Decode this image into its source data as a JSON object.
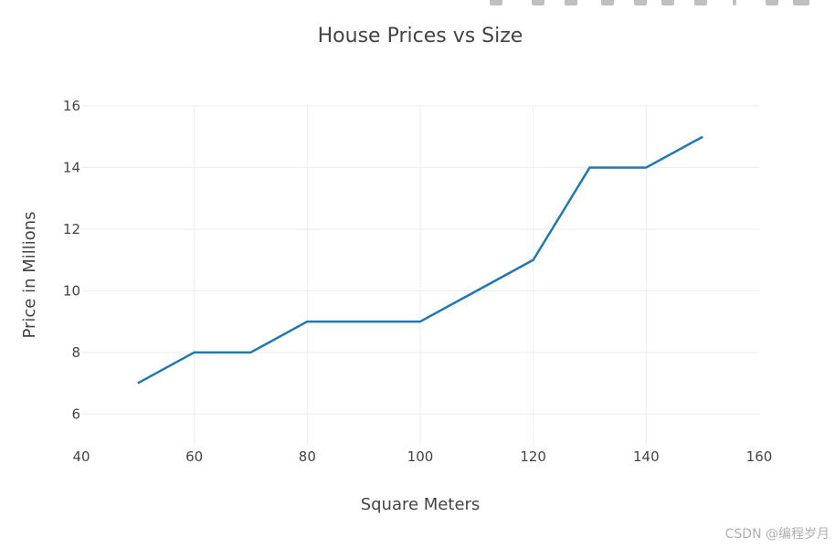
{
  "chart_data": {
    "type": "line",
    "title": "House Prices vs Size",
    "xlabel": "Square Meters",
    "ylabel": "Price in Millions",
    "xlim": [
      40,
      160
    ],
    "ylim": [
      5,
      16
    ],
    "x_ticks": [
      40,
      60,
      80,
      100,
      120,
      140,
      160
    ],
    "y_ticks": [
      6,
      8,
      10,
      12,
      14,
      16
    ],
    "grid": true,
    "legend": "none",
    "series": [
      {
        "color": "#1f77b4",
        "x": [
          50,
          60,
          70,
          80,
          90,
          100,
          110,
          120,
          130,
          140,
          150
        ],
        "y": [
          7,
          8,
          8,
          9,
          9,
          9,
          10,
          11,
          14,
          14,
          15
        ]
      }
    ]
  },
  "modebar": {
    "icons": [
      "camera-icon",
      "zoom-icon",
      "pan-icon",
      "zoom-in-icon",
      "zoom-out-icon",
      "autoscale-icon",
      "reset-axes-icon",
      "spike-lines-icon",
      "hover-closest-icon",
      "hover-compare-icon",
      "plotly-logo-icon"
    ]
  },
  "watermark": {
    "text": "CSDN @编程岁月"
  }
}
